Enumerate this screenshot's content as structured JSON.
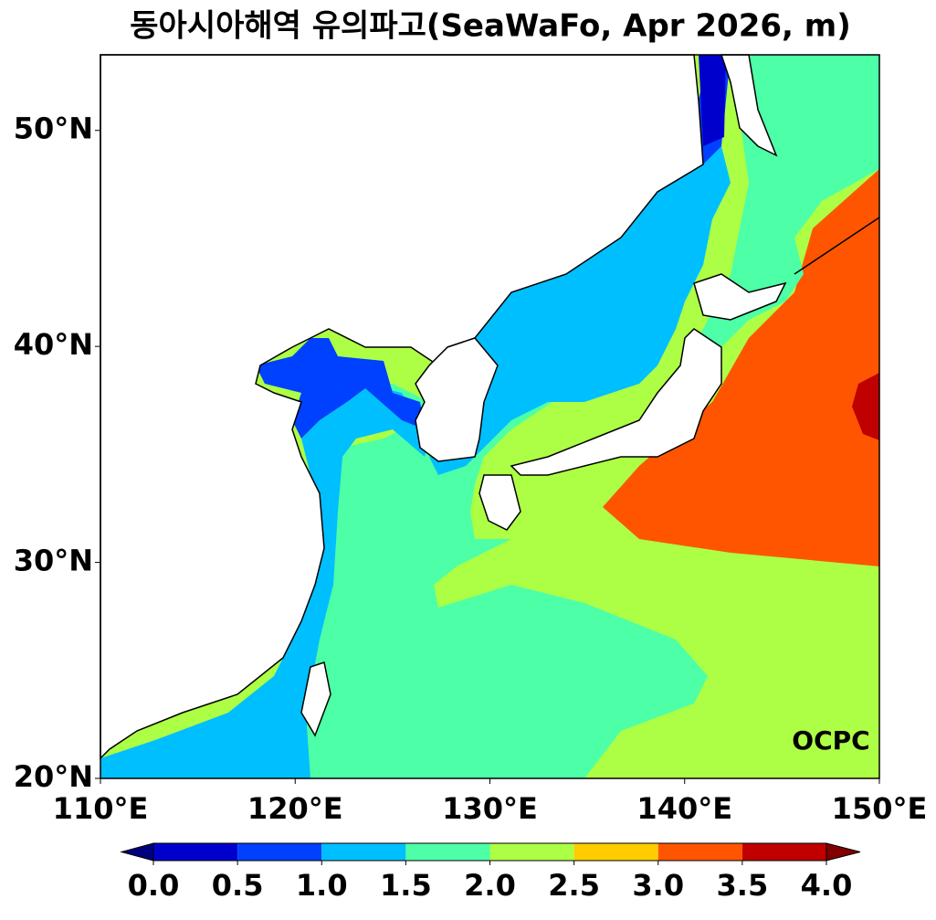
{
  "chart_data": {
    "type": "contour-map",
    "title": "동아시아해역 유의파고(SeaWaFo, Apr 2026, m)",
    "xlim": [
      110,
      150
    ],
    "ylim": [
      20,
      53.5
    ],
    "xticks": [
      {
        "value": 110,
        "label": "110°E"
      },
      {
        "value": 120,
        "label": "120°E"
      },
      {
        "value": 130,
        "label": "130°E"
      },
      {
        "value": 140,
        "label": "140°E"
      },
      {
        "value": 150,
        "label": "150°E"
      }
    ],
    "yticks": [
      {
        "value": 20,
        "label": "20°N"
      },
      {
        "value": 30,
        "label": "30°N"
      },
      {
        "value": 40,
        "label": "40°N"
      },
      {
        "value": 50,
        "label": "50°N"
      }
    ],
    "colorbar": {
      "ticks": [
        {
          "value": 0,
          "label": "0.0"
        },
        {
          "value": 0.5,
          "label": "0.5"
        },
        {
          "value": 1,
          "label": "1.0"
        },
        {
          "value": 1.5,
          "label": "1.5"
        },
        {
          "value": 2,
          "label": "2.0"
        },
        {
          "value": 2.5,
          "label": "2.5"
        },
        {
          "value": 3,
          "label": "3.0"
        },
        {
          "value": 3.5,
          "label": "3.5"
        },
        {
          "value": 4,
          "label": "4.0"
        }
      ],
      "colors": [
        "#00007f",
        "#0000cd",
        "#0040ff",
        "#00bfff",
        "#4dffa6",
        "#adff45",
        "#ffcc00",
        "#ff5500",
        "#c00000",
        "#800000"
      ],
      "extend": "both"
    },
    "logo": "OCPC"
  }
}
